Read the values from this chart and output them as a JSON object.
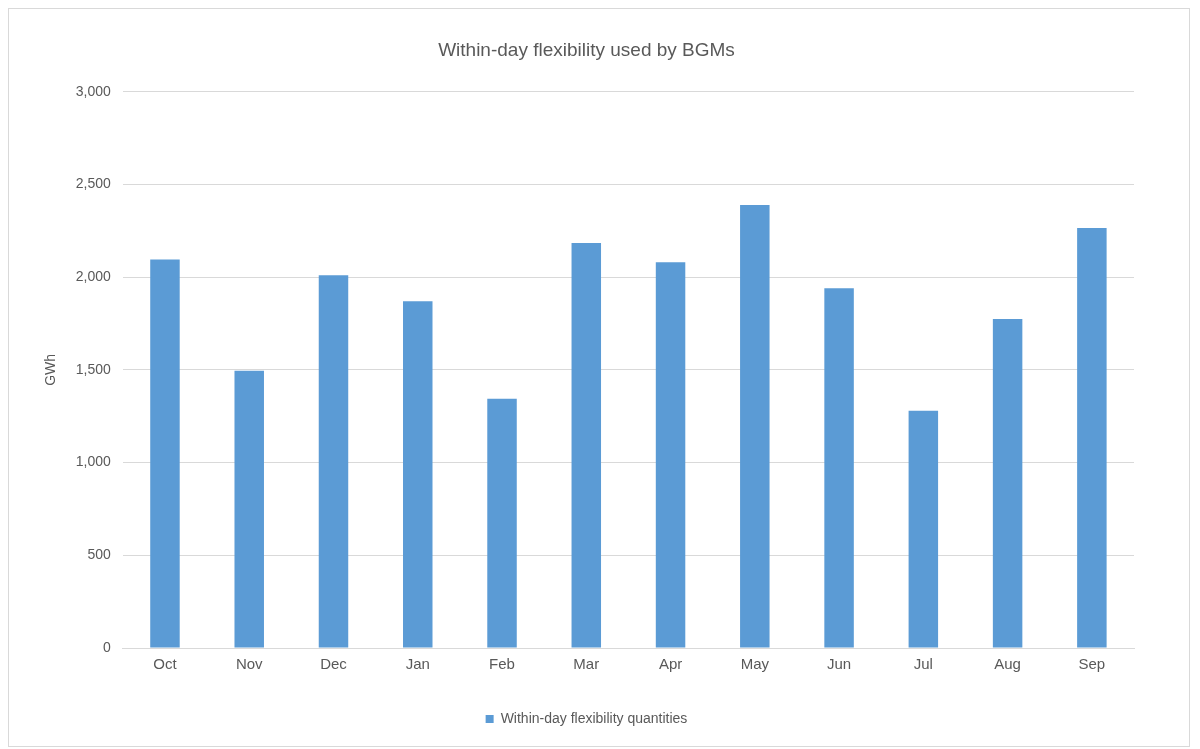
{
  "chart_data": {
    "type": "bar",
    "title": "Within-day flexibility used by BGMs",
    "ylabel": "GWh",
    "categories": [
      "Oct",
      "Nov",
      "Dec",
      "Jan",
      "Feb",
      "Mar",
      "Apr",
      "May",
      "Jun",
      "Jul",
      "Aug",
      "Sep"
    ],
    "series": [
      {
        "name": "Within-day flexibility quantities",
        "color": "#5b9bd5",
        "values": [
          2095,
          1495,
          2010,
          1870,
          1345,
          2185,
          2080,
          2390,
          1940,
          1280,
          1775,
          2265
        ]
      }
    ],
    "ylim": [
      0,
      3000
    ],
    "yticks": [
      {
        "value": 0,
        "label": "0"
      },
      {
        "value": 500,
        "label": "500"
      },
      {
        "value": 1000,
        "label": "1,000"
      },
      {
        "value": 1500,
        "label": "1,500"
      },
      {
        "value": 2000,
        "label": "2,000"
      },
      {
        "value": 2500,
        "label": "2,500"
      },
      {
        "value": 3000,
        "label": "3,000"
      }
    ],
    "grid": "y",
    "legend": "bottom"
  }
}
